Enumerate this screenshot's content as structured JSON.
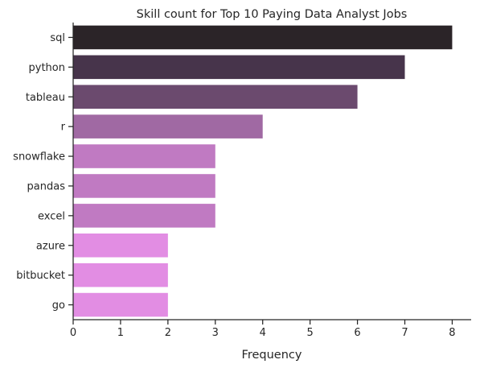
{
  "chart_data": {
    "type": "bar",
    "orientation": "horizontal",
    "title": "Skill count for Top 10 Paying Data Analyst Jobs",
    "xlabel": "Frequency",
    "ylabel": "",
    "categories": [
      "sql",
      "python",
      "tableau",
      "r",
      "snowflake",
      "pandas",
      "excel",
      "azure",
      "bitbucket",
      "go"
    ],
    "values": [
      8,
      7,
      6,
      4,
      3,
      3,
      3,
      2,
      2,
      2
    ],
    "colors": [
      "#2b2428",
      "#47344b",
      "#6b4a6e",
      "#a069a3",
      "#c07ac2",
      "#c07ac2",
      "#c07ac2",
      "#e28de3",
      "#e28de3",
      "#e28de3"
    ],
    "xlim": [
      0,
      8.4
    ],
    "xticks": [
      0,
      1,
      2,
      3,
      4,
      5,
      6,
      7,
      8
    ],
    "grid": false,
    "legend": "none"
  }
}
